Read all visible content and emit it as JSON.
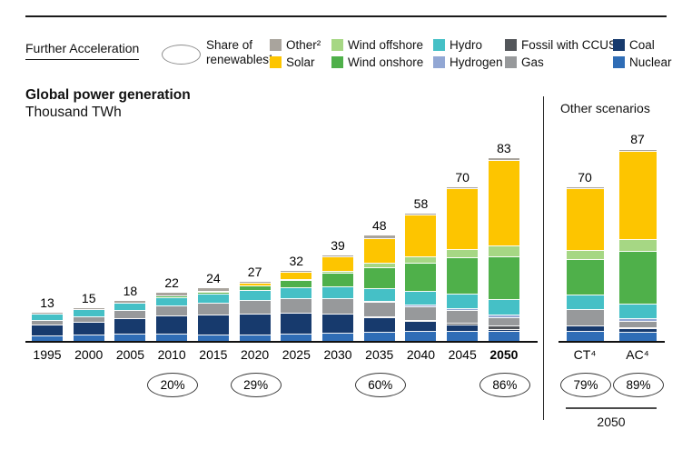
{
  "header": {
    "scenario_label": "Further Acceleration",
    "share_label_lines": [
      "Share of",
      "renewables¹"
    ],
    "legend": {
      "rows": [
        [
          {
            "label": "Other²",
            "color": "#a9a49d"
          },
          {
            "label": "Wind offshore",
            "color": "#a6d784"
          },
          {
            "label": "Hydro",
            "color": "#45c0c6"
          },
          {
            "label": "Fossil with CCUS³",
            "color": "#53565a"
          },
          {
            "label": "Coal",
            "color": "#173a6d"
          }
        ],
        [
          {
            "label": "Solar",
            "color": "#fdc500"
          },
          {
            "label": "Wind onshore",
            "color": "#4fb04a"
          },
          {
            "label": "Hydrogen",
            "color": "#92a7d4"
          },
          {
            "label": "Gas",
            "color": "#97999b"
          },
          {
            "label": "Nuclear",
            "color": "#2f6db6"
          }
        ]
      ]
    }
  },
  "chart": {
    "title": "Global power generation",
    "subtitle": "Thousand TWh"
  },
  "chart_data": {
    "type": "bar",
    "stacked": true,
    "title": "Global power generation",
    "ylabel": "Thousand TWh",
    "grid": false,
    "legend_position": "top",
    "categories": [
      "1995",
      "2000",
      "2005",
      "2010",
      "2015",
      "2020",
      "2025",
      "2030",
      "2035",
      "2040",
      "2045",
      "2050"
    ],
    "bold_category": "2050",
    "totals": [
      13,
      15,
      18,
      22,
      24,
      27,
      32,
      39,
      48,
      58,
      70,
      83
    ],
    "series": [
      {
        "key": "nuclear",
        "name": "Nuclear",
        "color": "#2f6db6",
        "values": [
          2.0,
          2.5,
          2.7,
          2.7,
          2.5,
          2.6,
          3.0,
          3.4,
          3.8,
          4.0,
          4.0,
          4.0
        ]
      },
      {
        "key": "coal",
        "name": "Coal",
        "color": "#173a6d",
        "values": [
          5.0,
          5.8,
          7.2,
          8.3,
          9.2,
          9.4,
          9.5,
          8.5,
          6.5,
          4.5,
          3.0,
          1.0
        ]
      },
      {
        "key": "fossil-ccus",
        "name": "Fossil with CCUS³",
        "color": "#53565a",
        "values": [
          0,
          0,
          0,
          0,
          0,
          0,
          0,
          0.1,
          0.3,
          0.6,
          1.0,
          1.5
        ]
      },
      {
        "key": "gas",
        "name": "Gas",
        "color": "#97999b",
        "values": [
          2.0,
          2.6,
          3.6,
          4.8,
          5.3,
          6.4,
          6.6,
          7.0,
          6.8,
          6.3,
          5.6,
          4.0
        ]
      },
      {
        "key": "hydrogen",
        "name": "Hydrogen",
        "color": "#92a7d4",
        "values": [
          0,
          0,
          0,
          0,
          0,
          0,
          0.1,
          0.2,
          0.4,
          0.6,
          0.8,
          1.0
        ]
      },
      {
        "key": "hydro",
        "name": "Hydro",
        "color": "#45c0c6",
        "values": [
          3.0,
          3.1,
          3.3,
          3.7,
          4.0,
          4.5,
          4.7,
          5.2,
          5.7,
          6.2,
          6.6,
          7.0
        ]
      },
      {
        "key": "wind-onshore",
        "name": "Wind onshore",
        "color": "#4fb04a",
        "values": [
          0,
          0.1,
          0.2,
          0.6,
          1.0,
          1.9,
          3.3,
          6.0,
          9.5,
          13.0,
          16.5,
          19.5
        ]
      },
      {
        "key": "wind-offshore",
        "name": "Wind offshore",
        "color": "#a6d784",
        "values": [
          0,
          0,
          0,
          0,
          0.1,
          0.2,
          0.4,
          1.2,
          2.0,
          3.0,
          4.0,
          5.0
        ]
      },
      {
        "key": "solar",
        "name": "Solar",
        "color": "#fdc500",
        "values": [
          0,
          0,
          0,
          0.1,
          0.4,
          1.2,
          3.4,
          6.4,
          11.5,
          18.8,
          27.5,
          39.0
        ]
      },
      {
        "key": "other",
        "name": "Other²",
        "color": "#a9a49d",
        "values": [
          1.0,
          0.9,
          1.0,
          1.8,
          1.5,
          0.8,
          1.0,
          1.0,
          1.5,
          1.0,
          1.0,
          1.0
        ]
      }
    ],
    "renewables_share": {
      "2010": "20%",
      "2020": "29%",
      "2035": "60%",
      "2050": "86%"
    },
    "other_scenarios": {
      "label": "Other scenarios",
      "year_label": "2050",
      "bars": [
        {
          "label": "CT⁴",
          "total": 70,
          "share": "79%",
          "values": [
            4.0,
            2.5,
            0.3,
            7.2,
            0.2,
            6.5,
            16.0,
            4.3,
            28.0,
            1.0
          ]
        },
        {
          "label": "AC⁴",
          "total": 87,
          "share": "89%",
          "values": [
            3.8,
            1.5,
            0.4,
            3.0,
            1.2,
            6.5,
            24.0,
            5.6,
            40.0,
            1.0
          ]
        }
      ]
    }
  }
}
